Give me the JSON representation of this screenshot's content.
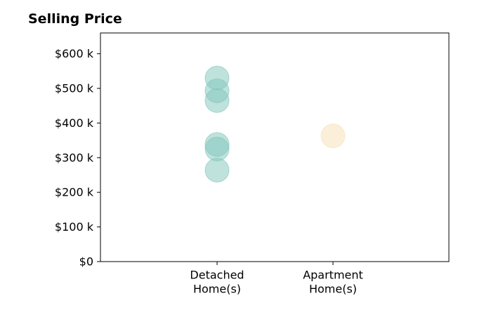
{
  "chart_data": {
    "type": "scatter",
    "title": "Selling Price",
    "xlabel": "",
    "ylabel": "",
    "categories": [
      [
        "Detached",
        "Home(s)"
      ],
      [
        "Apartment",
        "Home(s)"
      ]
    ],
    "ylim": [
      0,
      660000
    ],
    "yticks": [
      {
        "value": 0,
        "label": "$0"
      },
      {
        "value": 100000,
        "label": "$100 k"
      },
      {
        "value": 200000,
        "label": "$200 k"
      },
      {
        "value": 300000,
        "label": "$300 k"
      },
      {
        "value": 400000,
        "label": "$400 k"
      },
      {
        "value": 500000,
        "label": "$500 k"
      },
      {
        "value": 600000,
        "label": "$600 k"
      }
    ],
    "grid": false,
    "series": [
      {
        "category_index": 0,
        "color": "#7fc5bb",
        "values": [
          530000,
          493000,
          465000,
          338000,
          325000,
          264000
        ]
      },
      {
        "category_index": 1,
        "color": "#f7e0b3",
        "values": [
          363000
        ]
      }
    ]
  }
}
